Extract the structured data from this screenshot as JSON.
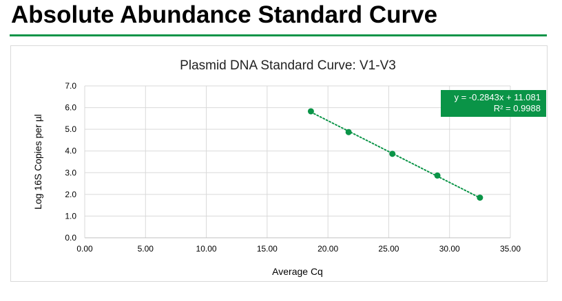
{
  "page": {
    "title": "Absolute Abundance Standard Curve",
    "accent_color": "#0a9447"
  },
  "chart_data": {
    "type": "scatter",
    "title": "Plasmid DNA Standard Curve: V1-V3",
    "xlabel": "Average Cq",
    "ylabel": "Log 16S Copies per µl",
    "xlim": [
      0,
      35
    ],
    "ylim": [
      0,
      7
    ],
    "x_ticks": [
      "0.00",
      "5.00",
      "10.00",
      "15.00",
      "20.00",
      "25.00",
      "30.00",
      "35.00"
    ],
    "y_ticks": [
      "0.0",
      "1.0",
      "2.0",
      "3.0",
      "4.0",
      "5.0",
      "6.0",
      "7.0"
    ],
    "grid": true,
    "series": [
      {
        "x": [
          18.6,
          21.7,
          25.3,
          29.0,
          32.5
        ],
        "y": [
          5.83,
          4.87,
          3.87,
          2.87,
          1.85
        ],
        "color": "#0a9447",
        "marker": "circle"
      }
    ],
    "trendline": {
      "type": "linear",
      "style": "dotted",
      "color": "#0a9447",
      "slope": -0.2843,
      "intercept": 11.081,
      "equation": "y = -0.2843x + 11.081",
      "r_squared": "R² = 0.9988"
    }
  }
}
